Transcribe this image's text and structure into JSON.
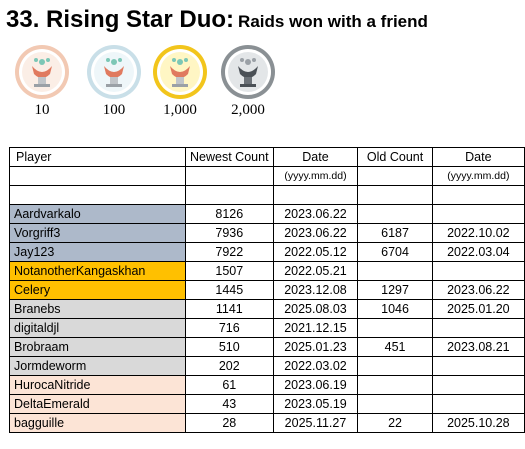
{
  "title": {
    "main": "33. Rising Star Duo:",
    "sub": "Raids won with a friend"
  },
  "medals": [
    {
      "label": "10",
      "tier": "bronze",
      "ring": "#f2c9b3",
      "inner": "#fbeee6"
    },
    {
      "label": "100",
      "tier": "silver",
      "ring": "#c9dfe8",
      "inner": "#eef6f9"
    },
    {
      "label": "1,000",
      "tier": "gold",
      "ring": "#f2c51c",
      "inner": "#fff6c4"
    },
    {
      "label": "2,000",
      "tier": "platinum",
      "ring": "#8a9094",
      "inner": "#e3e6e8"
    }
  ],
  "table": {
    "headers": {
      "player": "Player",
      "newest_count": "Newest Count",
      "date": "Date",
      "old_count": "Old Count",
      "old_date": "Date"
    },
    "date_format": "(yyyy.mm.dd)",
    "rows": [
      {
        "player": "Aardvarkalo",
        "newest": "8126",
        "date": "2023.06.22",
        "old": "",
        "old_date": "",
        "bg": "#adb9ca"
      },
      {
        "player": "Vorgriff3",
        "newest": "7936",
        "date": "2023.06.22",
        "old": "6187",
        "old_date": "2022.10.02",
        "bg": "#adb9ca"
      },
      {
        "player": "Jay123",
        "newest": "7922",
        "date": "2022.05.12",
        "old": "6704",
        "old_date": "2022.03.04",
        "bg": "#adb9ca"
      },
      {
        "player": "NotanotherKangaskhan",
        "newest": "1507",
        "date": "2022.05.21",
        "old": "",
        "old_date": "",
        "bg": "#ffc000"
      },
      {
        "player": "Celery",
        "newest": "1445",
        "date": "2023.12.08",
        "old": "1297",
        "old_date": "2023.06.22",
        "bg": "#ffc000"
      },
      {
        "player": "Branebs",
        "newest": "1141",
        "date": "2025.08.03",
        "old": "1046",
        "old_date": "2025.01.20",
        "bg": "#d9d9d9"
      },
      {
        "player": "digitaldjl",
        "newest": "716",
        "date": "2021.12.15",
        "old": "",
        "old_date": "",
        "bg": "#d9d9d9"
      },
      {
        "player": "Brobraam",
        "newest": "510",
        "date": "2025.01.23",
        "old": "451",
        "old_date": "2023.08.21",
        "bg": "#d9d9d9"
      },
      {
        "player": "Jormdeworm",
        "newest": "202",
        "date": "2022.03.02",
        "old": "",
        "old_date": "",
        "bg": "#d9d9d9"
      },
      {
        "player": "HurocaNitride",
        "newest": "61",
        "date": "2023.06.19",
        "old": "",
        "old_date": "",
        "bg": "#fce4d6"
      },
      {
        "player": "DeltaEmerald",
        "newest": "43",
        "date": "2023.05.19",
        "old": "",
        "old_date": "",
        "bg": "#fce4d6"
      },
      {
        "player": "bagguille",
        "newest": "28",
        "date": "2025.11.27",
        "old": "22",
        "old_date": "2025.10.28",
        "bg": "#fce4d6"
      }
    ]
  }
}
